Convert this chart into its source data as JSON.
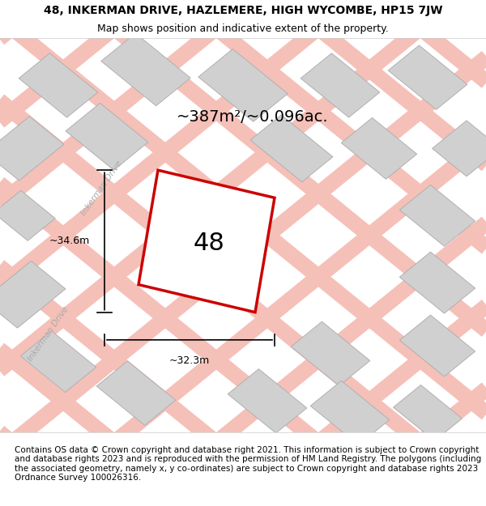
{
  "title_line1": "48, INKERMAN DRIVE, HAZLEMERE, HIGH WYCOMBE, HP15 7JW",
  "title_line2": "Map shows position and indicative extent of the property.",
  "footer": "Contains OS data © Crown copyright and database right 2021. This information is subject to Crown copyright and database rights 2023 and is reproduced with the permission of HM Land Registry. The polygons (including the associated geometry, namely x, y co-ordinates) are subject to Crown copyright and database rights 2023 Ordnance Survey 100026316.",
  "area_label": "~387m²/~0.096ac.",
  "number_label": "48",
  "dim_vertical": "~34.6m",
  "dim_horizontal": "~32.3m",
  "street_label_1": "Inkerman Drive",
  "street_label_2": "Inkerman Drive",
  "bg_color": "#e8e8e8",
  "map_bg": "#f0f0f0",
  "building_color": "#d0d0d0",
  "building_edge": "#b0b0b0",
  "road_color": "#f5c0b8",
  "road_edge": "#e08080",
  "plot_fill": "#ffffff",
  "plot_edge": "#cc0000",
  "title_fontsize": 10,
  "footer_fontsize": 7.5
}
